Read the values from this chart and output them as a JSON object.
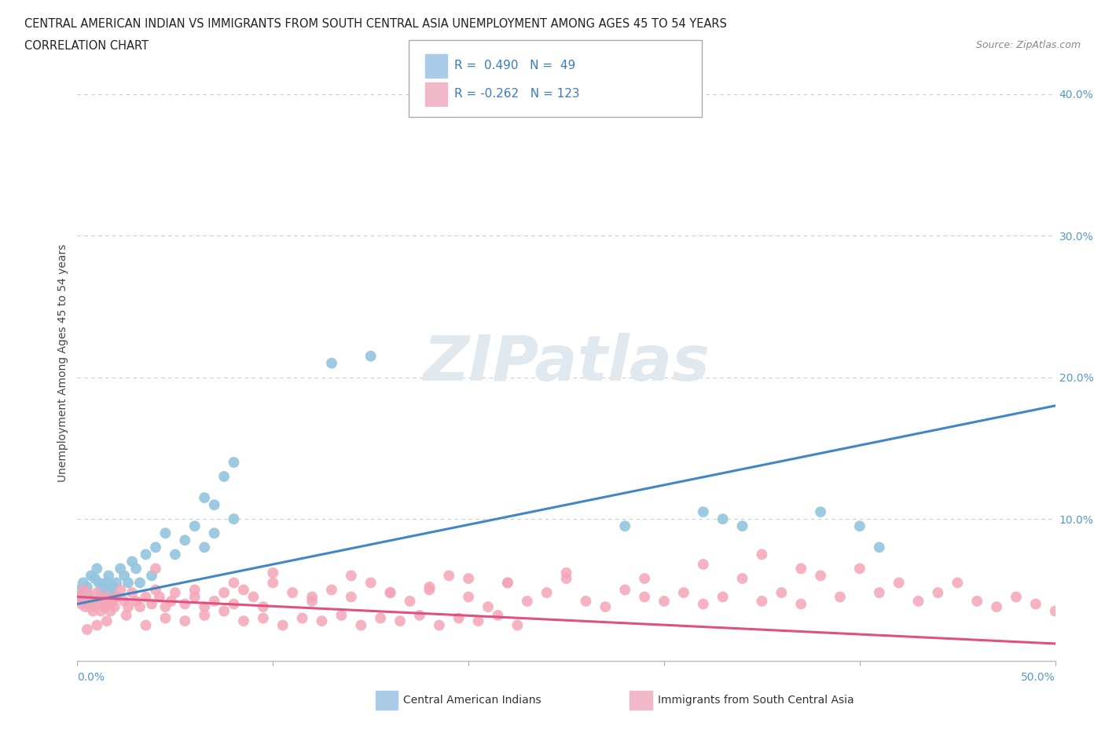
{
  "title_line1": "CENTRAL AMERICAN INDIAN VS IMMIGRANTS FROM SOUTH CENTRAL ASIA UNEMPLOYMENT AMONG AGES 45 TO 54 YEARS",
  "title_line2": "CORRELATION CHART",
  "source_text": "Source: ZipAtlas.com",
  "ylabel": "Unemployment Among Ages 45 to 54 years",
  "xlim": [
    0.0,
    0.5
  ],
  "ylim": [
    0.0,
    0.42
  ],
  "color_blue": "#92c5de",
  "color_pink": "#f4a6b8",
  "line_color_blue": "#4286c8",
  "line_color_pink": "#e05080",
  "grid_color": "#cccccc",
  "tick_color": "#5599cc",
  "watermark_color": "#e0e8f0",
  "blue_r": 0.49,
  "blue_n": 49,
  "pink_r": -0.262,
  "pink_n": 123,
  "blue_x": [
    0.001,
    0.002,
    0.003,
    0.004,
    0.005,
    0.006,
    0.007,
    0.008,
    0.009,
    0.01,
    0.011,
    0.012,
    0.013,
    0.014,
    0.015,
    0.016,
    0.017,
    0.018,
    0.019,
    0.02,
    0.022,
    0.024,
    0.026,
    0.028,
    0.03,
    0.032,
    0.035,
    0.038,
    0.04,
    0.045,
    0.05,
    0.055,
    0.06,
    0.065,
    0.07,
    0.08,
    0.065,
    0.07,
    0.075,
    0.08,
    0.13,
    0.15,
    0.28,
    0.32,
    0.33,
    0.34,
    0.38,
    0.4,
    0.41
  ],
  "blue_y": [
    0.05,
    0.045,
    0.055,
    0.048,
    0.052,
    0.045,
    0.06,
    0.042,
    0.058,
    0.065,
    0.055,
    0.048,
    0.052,
    0.045,
    0.055,
    0.06,
    0.048,
    0.052,
    0.045,
    0.055,
    0.065,
    0.06,
    0.055,
    0.07,
    0.065,
    0.055,
    0.075,
    0.06,
    0.08,
    0.09,
    0.075,
    0.085,
    0.095,
    0.08,
    0.09,
    0.1,
    0.115,
    0.11,
    0.13,
    0.14,
    0.21,
    0.215,
    0.095,
    0.105,
    0.1,
    0.095,
    0.105,
    0.095,
    0.08
  ],
  "pink_x": [
    0.001,
    0.002,
    0.003,
    0.004,
    0.005,
    0.006,
    0.007,
    0.008,
    0.009,
    0.01,
    0.011,
    0.012,
    0.013,
    0.014,
    0.015,
    0.016,
    0.017,
    0.018,
    0.019,
    0.02,
    0.022,
    0.024,
    0.026,
    0.028,
    0.03,
    0.032,
    0.035,
    0.038,
    0.04,
    0.042,
    0.045,
    0.048,
    0.05,
    0.055,
    0.06,
    0.065,
    0.07,
    0.075,
    0.08,
    0.085,
    0.09,
    0.095,
    0.1,
    0.11,
    0.12,
    0.13,
    0.14,
    0.15,
    0.16,
    0.17,
    0.18,
    0.19,
    0.2,
    0.21,
    0.22,
    0.23,
    0.24,
    0.25,
    0.26,
    0.27,
    0.28,
    0.29,
    0.3,
    0.31,
    0.32,
    0.33,
    0.34,
    0.35,
    0.36,
    0.37,
    0.38,
    0.39,
    0.4,
    0.41,
    0.42,
    0.43,
    0.44,
    0.45,
    0.46,
    0.47,
    0.48,
    0.49,
    0.5,
    0.35,
    0.37,
    0.32,
    0.29,
    0.25,
    0.22,
    0.2,
    0.18,
    0.16,
    0.14,
    0.12,
    0.1,
    0.08,
    0.06,
    0.04,
    0.02,
    0.01,
    0.005,
    0.015,
    0.025,
    0.035,
    0.045,
    0.055,
    0.065,
    0.075,
    0.085,
    0.095,
    0.105,
    0.115,
    0.125,
    0.135,
    0.145,
    0.155,
    0.165,
    0.175,
    0.185,
    0.195,
    0.205,
    0.215,
    0.225
  ],
  "pink_y": [
    0.045,
    0.04,
    0.05,
    0.038,
    0.048,
    0.042,
    0.038,
    0.035,
    0.042,
    0.048,
    0.04,
    0.035,
    0.042,
    0.038,
    0.045,
    0.04,
    0.035,
    0.042,
    0.038,
    0.045,
    0.05,
    0.042,
    0.038,
    0.048,
    0.042,
    0.038,
    0.045,
    0.04,
    0.05,
    0.045,
    0.038,
    0.042,
    0.048,
    0.04,
    0.045,
    0.038,
    0.042,
    0.048,
    0.04,
    0.05,
    0.045,
    0.038,
    0.055,
    0.048,
    0.042,
    0.05,
    0.045,
    0.055,
    0.048,
    0.042,
    0.05,
    0.06,
    0.045,
    0.038,
    0.055,
    0.042,
    0.048,
    0.058,
    0.042,
    0.038,
    0.05,
    0.045,
    0.042,
    0.048,
    0.04,
    0.045,
    0.058,
    0.042,
    0.048,
    0.04,
    0.06,
    0.045,
    0.065,
    0.048,
    0.055,
    0.042,
    0.048,
    0.055,
    0.042,
    0.038,
    0.045,
    0.04,
    0.035,
    0.075,
    0.065,
    0.068,
    0.058,
    0.062,
    0.055,
    0.058,
    0.052,
    0.048,
    0.06,
    0.045,
    0.062,
    0.055,
    0.05,
    0.065,
    0.045,
    0.025,
    0.022,
    0.028,
    0.032,
    0.025,
    0.03,
    0.028,
    0.032,
    0.035,
    0.028,
    0.03,
    0.025,
    0.03,
    0.028,
    0.032,
    0.025,
    0.03,
    0.028,
    0.032,
    0.025,
    0.03,
    0.028,
    0.032,
    0.025
  ]
}
